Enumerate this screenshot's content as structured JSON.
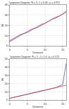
{
  "chart_data": [
    {
      "type": "line",
      "title": "Lyapunov Diagram: N = 5, J = 0.03, ω = 0.972",
      "x_label": "Distance",
      "y_label": "W",
      "x": [
        0,
        1,
        2,
        3,
        4,
        5,
        6,
        7,
        8,
        9,
        10,
        11,
        12,
        13,
        14,
        15,
        16
      ],
      "series": [
        {
          "color": "#3b5bdb",
          "values": [
            4,
            6,
            8,
            10,
            12,
            13,
            15,
            17,
            18,
            20,
            22,
            24,
            26,
            27,
            29,
            31,
            34
          ]
        },
        {
          "color": "#e03131",
          "values": [
            5,
            7,
            9,
            11,
            12,
            14,
            16,
            17,
            19,
            21,
            22,
            24,
            26,
            28,
            29,
            31,
            33
          ]
        }
      ],
      "xlim": [
        0,
        16
      ],
      "xticks": [
        0,
        5,
        10,
        15
      ],
      "ylim": [
        0,
        40
      ],
      "yticks": [
        0,
        10,
        20,
        30,
        40
      ],
      "grid": true
    },
    {
      "type": "line",
      "title": "Lyapunov Diagram: N = 5, J = 1.0, ω = 0.172",
      "x_label": "Distance",
      "y_label": "W",
      "x": [
        0,
        1,
        2,
        3,
        4,
        5,
        6,
        7,
        8,
        9,
        10,
        11,
        12,
        13,
        14,
        15,
        16
      ],
      "series": [
        {
          "color": "#3b5bdb",
          "values": [
            2,
            3,
            4,
            5,
            6,
            7,
            8,
            9,
            10,
            11,
            12,
            13,
            14,
            15,
            17,
            19,
            45
          ]
        },
        {
          "color": "#e03131",
          "values": [
            2,
            3,
            4,
            5,
            6,
            7,
            8,
            9,
            10,
            11,
            12,
            13,
            14,
            15,
            16,
            17,
            18
          ]
        }
      ],
      "xlim": [
        0,
        16
      ],
      "xticks": [
        0,
        5,
        10,
        15
      ],
      "ylim": [
        0,
        50
      ],
      "yticks": [
        0,
        10,
        20,
        30,
        40,
        50
      ],
      "grid": true
    }
  ]
}
